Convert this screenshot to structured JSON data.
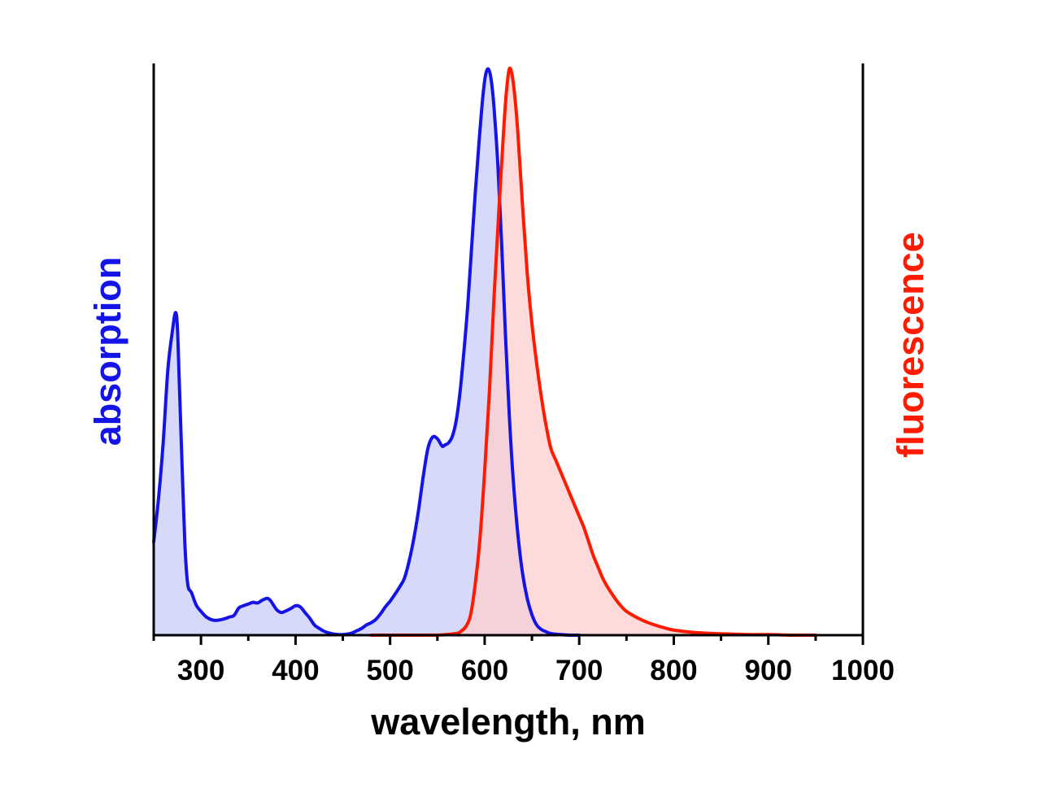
{
  "chart_data": {
    "type": "area",
    "xlabel": "wavelength, nm",
    "ylabel_left": "absorption",
    "ylabel_right": "fluorescence",
    "xlim": [
      250,
      1000
    ],
    "ylim": [
      0,
      1
    ],
    "x_ticks": [
      300,
      400,
      500,
      600,
      700,
      800,
      900,
      1000
    ],
    "x_tick_labels": [
      "300",
      "400",
      "500",
      "600",
      "700",
      "800",
      "900",
      "1000"
    ],
    "grid": false,
    "legend": "none",
    "series": [
      {
        "name": "absorption",
        "color": "#1414e6",
        "fill": "#c8ccf8",
        "x": [
          250,
          255,
          260,
          265,
          270,
          273,
          275,
          277,
          280,
          283,
          286,
          290,
          295,
          300,
          305,
          310,
          315,
          320,
          325,
          330,
          335,
          340,
          345,
          350,
          355,
          360,
          365,
          370,
          373,
          376,
          380,
          385,
          390,
          395,
          400,
          405,
          410,
          415,
          420,
          425,
          430,
          435,
          440,
          445,
          450,
          455,
          460,
          465,
          470,
          475,
          480,
          485,
          490,
          495,
          500,
          505,
          510,
          515,
          520,
          525,
          530,
          535,
          540,
          545,
          550,
          555,
          558,
          562,
          566,
          570,
          574,
          578,
          582,
          586,
          590,
          594,
          598,
          601,
          604,
          607,
          610,
          614,
          618,
          622,
          626,
          630,
          635,
          640,
          645,
          650,
          655,
          660,
          665,
          670,
          680,
          690,
          700
        ],
        "y": [
          0.165,
          0.24,
          0.34,
          0.47,
          0.54,
          0.57,
          0.545,
          0.45,
          0.3,
          0.16,
          0.09,
          0.075,
          0.053,
          0.042,
          0.033,
          0.028,
          0.026,
          0.027,
          0.029,
          0.032,
          0.035,
          0.048,
          0.052,
          0.055,
          0.058,
          0.057,
          0.062,
          0.065,
          0.062,
          0.055,
          0.045,
          0.04,
          0.043,
          0.047,
          0.052,
          0.05,
          0.04,
          0.03,
          0.018,
          0.012,
          0.007,
          0.004,
          0.002,
          0.001,
          0.001,
          0.002,
          0.004,
          0.008,
          0.012,
          0.018,
          0.022,
          0.028,
          0.038,
          0.05,
          0.06,
          0.072,
          0.085,
          0.1,
          0.13,
          0.17,
          0.22,
          0.28,
          0.33,
          0.35,
          0.347,
          0.334,
          0.336,
          0.34,
          0.352,
          0.38,
          0.43,
          0.5,
          0.58,
          0.68,
          0.78,
          0.87,
          0.95,
          0.99,
          1.0,
          0.98,
          0.93,
          0.83,
          0.69,
          0.53,
          0.39,
          0.28,
          0.18,
          0.11,
          0.065,
          0.036,
          0.018,
          0.01,
          0.006,
          0.003,
          0.001,
          0.0,
          0.0
        ]
      },
      {
        "name": "fluorescence",
        "color": "#ff1a00",
        "fill": "#ffcdcd",
        "x": [
          480,
          520,
          550,
          570,
          575,
          580,
          585,
          590,
          595,
          600,
          605,
          610,
          615,
          620,
          623,
          626,
          629,
          632,
          635,
          640,
          645,
          650,
          655,
          660,
          665,
          670,
          675,
          680,
          685,
          690,
          695,
          700,
          705,
          710,
          715,
          720,
          725,
          730,
          735,
          740,
          745,
          750,
          760,
          770,
          780,
          790,
          800,
          820,
          840,
          860,
          880,
          900,
          925,
          950
        ],
        "y": [
          0.0,
          0.0,
          0.0,
          0.003,
          0.007,
          0.015,
          0.035,
          0.09,
          0.17,
          0.29,
          0.43,
          0.6,
          0.75,
          0.89,
          0.96,
          1.0,
          0.99,
          0.95,
          0.89,
          0.76,
          0.64,
          0.55,
          0.48,
          0.42,
          0.37,
          0.33,
          0.31,
          0.29,
          0.27,
          0.25,
          0.23,
          0.21,
          0.19,
          0.165,
          0.14,
          0.12,
          0.1,
          0.085,
          0.072,
          0.06,
          0.05,
          0.042,
          0.032,
          0.024,
          0.018,
          0.013,
          0.009,
          0.005,
          0.003,
          0.002,
          0.001,
          0.001,
          0.0,
          0.0
        ]
      }
    ]
  }
}
